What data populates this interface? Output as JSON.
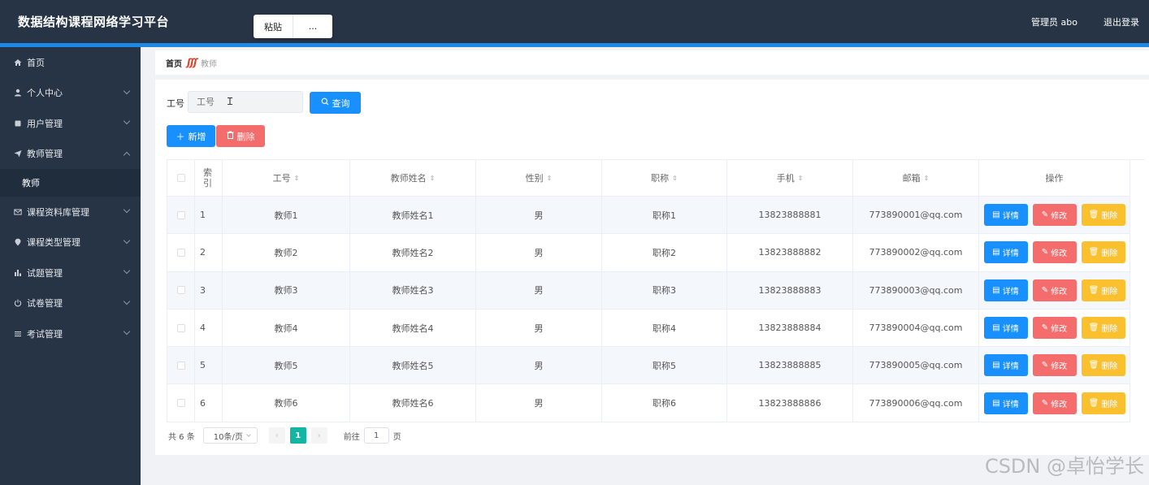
{
  "app": {
    "title": "数据结构课程网络学习平台",
    "user": "管理员 abo",
    "logout": "退出登录"
  },
  "context_menu": {
    "items": [
      "粘贴",
      "..."
    ]
  },
  "sidebar": {
    "items": [
      {
        "label": "首页",
        "icon": "home-icon"
      },
      {
        "label": "个人中心",
        "icon": "user-icon"
      },
      {
        "label": "用户管理",
        "icon": "users-icon"
      },
      {
        "label": "教师管理",
        "icon": "send-icon",
        "expanded": true
      },
      {
        "label": "课程资料库管理",
        "icon": "mail-icon"
      },
      {
        "label": "课程类型管理",
        "icon": "location-icon"
      },
      {
        "label": "试题管理",
        "icon": "bar-chart-icon"
      },
      {
        "label": "试卷管理",
        "icon": "power-icon"
      },
      {
        "label": "考试管理",
        "icon": "menu-icon"
      }
    ],
    "submenu": {
      "label": "教师"
    }
  },
  "breadcrumb": {
    "home": "首页",
    "separator": "ʃʃʃ",
    "current": "教师"
  },
  "search": {
    "label": "工号",
    "placeholder": "工号",
    "button": "查询"
  },
  "actions": {
    "add": "新增",
    "delete": "删除"
  },
  "table": {
    "headers": {
      "index": "索引",
      "no": "工号",
      "name": "教师姓名",
      "sex": "性别",
      "title": "职称",
      "phone": "手机",
      "email": "邮箱",
      "ops": "操作"
    },
    "row_buttons": {
      "detail": "详情",
      "edit": "修改",
      "delete": "删除"
    },
    "rows": [
      {
        "index": "1",
        "no": "教师1",
        "name": "教师姓名1",
        "sex": "男",
        "title": "职称1",
        "phone": "13823888881",
        "email": "773890001@qq.com"
      },
      {
        "index": "2",
        "no": "教师2",
        "name": "教师姓名2",
        "sex": "男",
        "title": "职称2",
        "phone": "13823888882",
        "email": "773890002@qq.com"
      },
      {
        "index": "3",
        "no": "教师3",
        "name": "教师姓名3",
        "sex": "男",
        "title": "职称3",
        "phone": "13823888883",
        "email": "773890003@qq.com"
      },
      {
        "index": "4",
        "no": "教师4",
        "name": "教师姓名4",
        "sex": "男",
        "title": "职称4",
        "phone": "13823888884",
        "email": "773890004@qq.com"
      },
      {
        "index": "5",
        "no": "教师5",
        "name": "教师姓名5",
        "sex": "男",
        "title": "职称5",
        "phone": "13823888885",
        "email": "773890005@qq.com"
      },
      {
        "index": "6",
        "no": "教师6",
        "name": "教师姓名6",
        "sex": "男",
        "title": "职称6",
        "phone": "13823888886",
        "email": "773890006@qq.com"
      }
    ]
  },
  "pagination": {
    "total": "共 6 条",
    "page_size": "10条/页",
    "prev": "‹",
    "current": "1",
    "next": "›",
    "goto_prefix": "前往",
    "goto_value": "1",
    "goto_suffix": "页"
  },
  "watermark": "CSDN @卓怡学长",
  "colors": {
    "sidebar": "#263445",
    "accent": "#1e88e5",
    "primary": "#1890ff",
    "danger": "#f56c6c",
    "warning": "#fbc02d",
    "pager_active": "#13b5a3"
  }
}
